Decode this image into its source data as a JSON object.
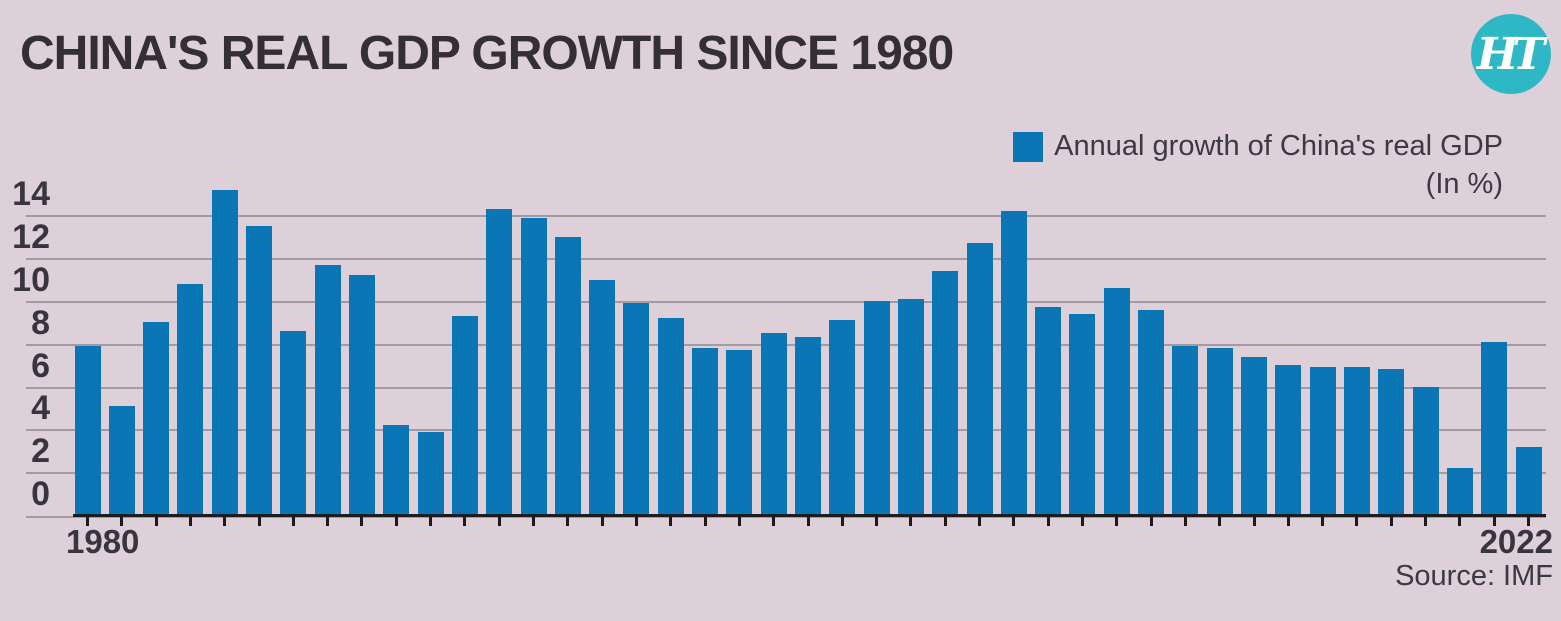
{
  "header": {
    "title": "CHINA'S REAL GDP GROWTH SINCE 1980",
    "logo_text": "HT"
  },
  "legend": {
    "label": "Annual growth of China's real GDP",
    "unit_label": "(In %)"
  },
  "axis": {
    "x_first": "1980",
    "x_last": "2022"
  },
  "footer": {
    "source": "Source: IMF"
  },
  "colors": {
    "background": "#ded0d9",
    "bar": "#0b76b6",
    "grid": "#a29ba4",
    "axis": "#1c1b1e",
    "text": "#332f34",
    "logo": "#2eb7c5",
    "logo_text": "#ffffff"
  },
  "chart_data": {
    "type": "bar",
    "title": "CHINA'S REAL GDP GROWTH SINCE 1980",
    "series_name": "Annual growth of China's real GDP",
    "unit": "%",
    "source": "IMF",
    "grid": true,
    "legend_position": "top-right",
    "ylim": [
      0,
      15.5
    ],
    "y_ticks": [
      0,
      2,
      4,
      6,
      8,
      10,
      12,
      14
    ],
    "x_tick_labels_visible": [
      "1980",
      "2022"
    ],
    "x": [
      1980,
      1981,
      1982,
      1983,
      1984,
      1985,
      1986,
      1987,
      1988,
      1989,
      1990,
      1991,
      1992,
      1993,
      1994,
      1995,
      1996,
      1997,
      1998,
      1999,
      2000,
      2001,
      2002,
      2003,
      2004,
      2005,
      2006,
      2007,
      2008,
      2009,
      2010,
      2011,
      2012,
      2013,
      2014,
      2015,
      2016,
      2017,
      2018,
      2019,
      2020,
      2021,
      2022
    ],
    "values": [
      7.9,
      5.1,
      9.0,
      10.8,
      15.2,
      13.5,
      8.6,
      11.7,
      11.2,
      4.2,
      3.9,
      9.3,
      14.3,
      13.9,
      13.0,
      11.0,
      9.9,
      9.2,
      7.8,
      7.7,
      8.5,
      8.3,
      9.1,
      10.0,
      10.1,
      11.4,
      12.7,
      14.2,
      9.7,
      9.4,
      10.6,
      9.6,
      7.9,
      7.8,
      7.4,
      7.0,
      6.9,
      6.9,
      6.8,
      6.0,
      2.2,
      8.1,
      3.2
    ]
  }
}
